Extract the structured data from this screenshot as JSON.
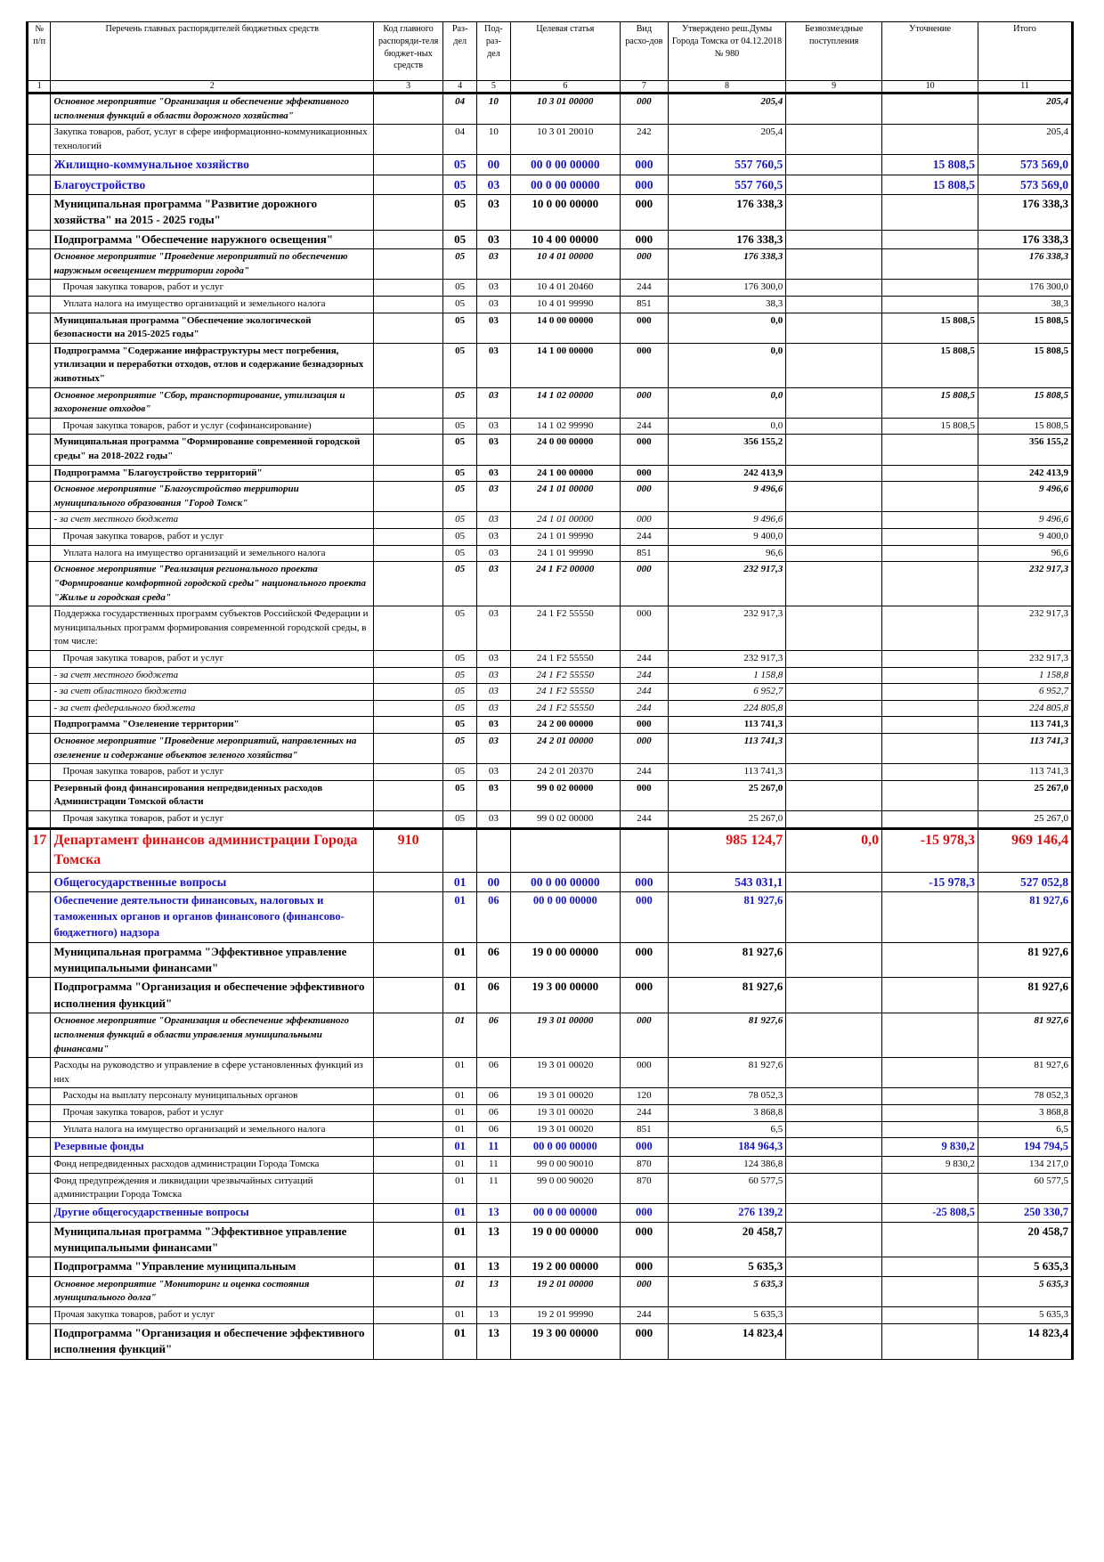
{
  "header": {
    "col1": "№ п/п",
    "col2": "Перечень главных распорядителей бюджетных средств",
    "col3": "Код главного распоряди-теля бюджет-ных средств",
    "col4": "Раз-дел",
    "col5": "Под-раз-дел",
    "col6": "Целевая статья",
    "col7": "Вид расхо-дов",
    "col8": "Утверждено реш.Думы Города Томска от 04.12.2018 № 980",
    "col9": "Безвозмездные поступления",
    "col10": "Уточнение",
    "col11": "Итого"
  },
  "col_numbers": [
    "1",
    "2",
    "3",
    "4",
    "5",
    "6",
    "7",
    "8",
    "9",
    "10",
    "11"
  ],
  "rows": [
    {
      "style": "bi",
      "n": "",
      "name": "Основное мероприятие \"Организация и обеспечение эффективного исполнения функций в области дорожного хозяйства\"",
      "code": "",
      "razd": "04",
      "podr": "10",
      "cs": "10 3 01 00000",
      "vr": "000",
      "approved": "205,4",
      "free": "",
      "adj": "",
      "total": "205,4"
    },
    {
      "style": "n",
      "n": "",
      "name": "Закупка товаров, работ, услуг в сфере информационно-коммуникационных технологий",
      "code": "",
      "razd": "04",
      "podr": "10",
      "cs": "10 3 01 20010",
      "vr": "242",
      "approved": "205,4",
      "free": "",
      "adj": "",
      "total": "205,4"
    },
    {
      "style": "blue",
      "n": "",
      "name": "Жилищно-коммунальное хозяйство",
      "code": "",
      "razd": "05",
      "podr": "00",
      "cs": "00 0 00 00000",
      "vr": "000",
      "approved": "557 760,5",
      "free": "",
      "adj": "15 808,5",
      "total": "573 569,0"
    },
    {
      "style": "blue",
      "n": "",
      "name": "Благоустройство",
      "code": "",
      "razd": "05",
      "podr": "03",
      "cs": "00 0 00 00000",
      "vr": "000",
      "approved": "557 760,5",
      "free": "",
      "adj": "15 808,5",
      "total": "573 569,0"
    },
    {
      "style": "b big",
      "n": "",
      "name": "Муниципальная программа \"Развитие дорожного хозяйства\" на 2015 - 2025 годы\"",
      "code": "",
      "razd": "05",
      "podr": "03",
      "cs": "10 0 00 00000",
      "vr": "000",
      "approved": "176 338,3",
      "free": "",
      "adj": "",
      "total": "176 338,3"
    },
    {
      "style": "b big",
      "n": "",
      "name": "Подпрограмма \"Обеспечение наружного освещения\"",
      "code": "",
      "razd": "05",
      "podr": "03",
      "cs": "10 4 00 00000",
      "vr": "000",
      "approved": "176 338,3",
      "free": "",
      "adj": "",
      "total": "176 338,3"
    },
    {
      "style": "bi",
      "n": "",
      "name": "Основное мероприятие \"Проведение мероприятий по обеспечению наружным освещением территории города\"",
      "code": "",
      "razd": "05",
      "podr": "03",
      "cs": "10 4 01 00000",
      "vr": "000",
      "approved": "176 338,3",
      "free": "",
      "adj": "",
      "total": "176 338,3"
    },
    {
      "style": "n pad",
      "n": "",
      "name": "Прочая закупка товаров, работ и услуг",
      "code": "",
      "razd": "05",
      "podr": "03",
      "cs": "10 4 01 20460",
      "vr": "244",
      "approved": "176 300,0",
      "free": "",
      "adj": "",
      "total": "176 300,0"
    },
    {
      "style": "n pad",
      "n": "",
      "name": "Уплата налога на имущество организаций и земельного налога",
      "code": "",
      "razd": "05",
      "podr": "03",
      "cs": "10 4 01 99990",
      "vr": "851",
      "approved": "38,3",
      "free": "",
      "adj": "",
      "total": "38,3"
    },
    {
      "style": "b",
      "n": "",
      "name": "Муниципальная программа \"Обеспечение экологической безопасности на 2015-2025 годы\"",
      "code": "",
      "razd": "05",
      "podr": "03",
      "cs": "14 0 00 00000",
      "vr": "000",
      "approved": "0,0",
      "free": "",
      "adj": "15 808,5",
      "total": "15 808,5"
    },
    {
      "style": "b",
      "n": "",
      "name": "Подпрограмма \"Содержание инфраструктуры мест погребения, утилизации и переработки отходов, отлов и содержание безнадзорных животных\"",
      "code": "",
      "razd": "05",
      "podr": "03",
      "cs": "14 1 00 00000",
      "vr": "000",
      "approved": "0,0",
      "free": "",
      "adj": "15 808,5",
      "total": "15 808,5"
    },
    {
      "style": "bi",
      "n": "",
      "name": "Основное мероприятие \"Сбор, транспортирование, утилизация и захоронение отходов\"",
      "code": "",
      "razd": "05",
      "podr": "03",
      "cs": "14 1 02 00000",
      "vr": "000",
      "approved": "0,0",
      "free": "",
      "adj": "15 808,5",
      "total": "15 808,5"
    },
    {
      "style": "n pad",
      "n": "",
      "name": "Прочая закупка товаров, работ и услуг (софинансирование)",
      "code": "",
      "razd": "05",
      "podr": "03",
      "cs": "14 1 02 99990",
      "vr": "244",
      "approved": "0,0",
      "free": "",
      "adj": "15 808,5",
      "total": "15 808,5"
    },
    {
      "style": "b",
      "n": "",
      "name": "Муниципальная программа \"Формирование современной городской среды\" на 2018-2022 годы\"",
      "code": "",
      "razd": "05",
      "podr": "03",
      "cs": "24 0 00 00000",
      "vr": "000",
      "approved": "356 155,2",
      "free": "",
      "adj": "",
      "total": "356 155,2"
    },
    {
      "style": "b",
      "n": "",
      "name": "Подпрограмма \"Благоустройство территорий\"",
      "code": "",
      "razd": "05",
      "podr": "03",
      "cs": "24 1 00 00000",
      "vr": "000",
      "approved": "242 413,9",
      "free": "",
      "adj": "",
      "total": "242 413,9"
    },
    {
      "style": "bi",
      "n": "",
      "name": "Основное мероприятие \"Благоустройство территории муниципального образования \"Город Томск\"",
      "code": "",
      "razd": "05",
      "podr": "03",
      "cs": "24 1 01 00000",
      "vr": "000",
      "approved": "9 496,6",
      "free": "",
      "adj": "",
      "total": "9 496,6"
    },
    {
      "style": "i",
      "n": "",
      "name": "- за счет местного бюджета",
      "code": "",
      "razd": "05",
      "podr": "03",
      "cs": "24 1 01 00000",
      "vr": "000",
      "approved": "9 496,6",
      "free": "",
      "adj": "",
      "total": "9 496,6"
    },
    {
      "style": "n pad",
      "n": "",
      "name": "Прочая закупка товаров, работ и услуг",
      "code": "",
      "razd": "05",
      "podr": "03",
      "cs": "24 1 01 99990",
      "vr": "244",
      "approved": "9 400,0",
      "free": "",
      "adj": "",
      "total": "9 400,0"
    },
    {
      "style": "n pad",
      "n": "",
      "name": "Уплата налога на имущество организаций и земельного налога",
      "code": "",
      "razd": "05",
      "podr": "03",
      "cs": "24 1 01 99990",
      "vr": "851",
      "approved": "96,6",
      "free": "",
      "adj": "",
      "total": "96,6"
    },
    {
      "style": "bi",
      "n": "",
      "name": "Основное мероприятие \"Реализация регионального проекта \"Формирование комфортной городской среды\" национального проекта \"Жилье и городская среда\"",
      "code": "",
      "razd": "05",
      "podr": "03",
      "cs": "24 1 F2 00000",
      "vr": "000",
      "approved": "232 917,3",
      "free": "",
      "adj": "",
      "total": "232 917,3"
    },
    {
      "style": "n",
      "n": "",
      "name": "Поддержка государственных программ субъектов Российской Федерации и муниципальных программ формирования современной городской среды, в том числе:",
      "code": "",
      "razd": "05",
      "podr": "03",
      "cs": "24 1 F2 55550",
      "vr": "000",
      "approved": "232 917,3",
      "free": "",
      "adj": "",
      "total": "232 917,3"
    },
    {
      "style": "n pad",
      "n": "",
      "name": "Прочая закупка товаров, работ и услуг",
      "code": "",
      "razd": "05",
      "podr": "03",
      "cs": "24 1 F2 55550",
      "vr": "244",
      "approved": "232 917,3",
      "free": "",
      "adj": "",
      "total": "232 917,3"
    },
    {
      "style": "i",
      "n": "",
      "name": "- за счет местного бюджета",
      "code": "",
      "razd": "05",
      "podr": "03",
      "cs": "24 1 F2 55550",
      "vr": "244",
      "approved": "1 158,8",
      "free": "",
      "adj": "",
      "total": "1 158,8"
    },
    {
      "style": "i",
      "n": "",
      "name": "- за счет областного бюджета",
      "code": "",
      "razd": "05",
      "podr": "03",
      "cs": "24 1 F2 55550",
      "vr": "244",
      "approved": "6 952,7",
      "free": "",
      "adj": "",
      "total": "6 952,7"
    },
    {
      "style": "i",
      "n": "",
      "name": "- за счет федерального бюджета",
      "code": "",
      "razd": "05",
      "podr": "03",
      "cs": "24 1 F2 55550",
      "vr": "244",
      "approved": "224 805,8",
      "free": "",
      "adj": "",
      "total": "224 805,8"
    },
    {
      "style": "b",
      "n": "",
      "name": "Подпрограмма \"Озеленение территории\"",
      "code": "",
      "razd": "05",
      "podr": "03",
      "cs": "24 2 00 00000",
      "vr": "000",
      "approved": "113 741,3",
      "free": "",
      "adj": "",
      "total": "113 741,3"
    },
    {
      "style": "bi",
      "n": "",
      "name": "Основное мероприятие \"Проведение мероприятий, направленных на озеленение и содержание объектов зеленого хозяйства\"",
      "code": "",
      "razd": "05",
      "podr": "03",
      "cs": "24 2 01 00000",
      "vr": "000",
      "approved": "113 741,3",
      "free": "",
      "adj": "",
      "total": "113 741,3"
    },
    {
      "style": "n pad",
      "n": "",
      "name": "Прочая закупка товаров, работ и услуг",
      "code": "",
      "razd": "05",
      "podr": "03",
      "cs": "24 2 01 20370",
      "vr": "244",
      "approved": "113 741,3",
      "free": "",
      "adj": "",
      "total": "113 741,3"
    },
    {
      "style": "b",
      "n": "",
      "name": "Резервный фонд финансирования непредвиденных расходов Администрации Томской области",
      "code": "",
      "razd": "05",
      "podr": "03",
      "cs": "99 0 02 00000",
      "vr": "000",
      "approved": "25 267,0",
      "free": "",
      "adj": "",
      "total": "25 267,0"
    },
    {
      "style": "n pad",
      "n": "",
      "name": "Прочая закупка товаров, работ и услуг",
      "code": "",
      "razd": "05",
      "podr": "03",
      "cs": "99 0 02 00000",
      "vr": "244",
      "approved": "25 267,0",
      "free": "",
      "adj": "",
      "total": "25 267,0"
    },
    {
      "style": "red",
      "n": "17",
      "name": "Департамент финансов администрации Города Томска",
      "code": "910",
      "razd": "",
      "podr": "",
      "cs": "",
      "vr": "",
      "approved": "985 124,7",
      "free": "0,0",
      "adj": "-15 978,3",
      "total": "969 146,4"
    },
    {
      "style": "blue",
      "n": "",
      "name": "Общегосударственные вопросы",
      "code": "",
      "razd": "01",
      "podr": "00",
      "cs": "00 0 00 00000",
      "vr": "000",
      "approved": "543 031,1",
      "free": "",
      "adj": "-15 978,3",
      "total": "527 052,8"
    },
    {
      "style": "blue small",
      "n": "",
      "name": "Обеспечение деятельности финансовых, налоговых и таможенных органов и органов финансового (финансово-бюджетного) надзора",
      "code": "",
      "razd": "01",
      "podr": "06",
      "cs": "00 0 00 00000",
      "vr": "000",
      "approved": "81 927,6",
      "free": "",
      "adj": "",
      "total": "81 927,6"
    },
    {
      "style": "b big",
      "n": "",
      "name": "Муниципальная программа \"Эффективное управление муниципальными финансами\"",
      "code": "",
      "razd": "01",
      "podr": "06",
      "cs": "19 0 00 00000",
      "vr": "000",
      "approved": "81 927,6",
      "free": "",
      "adj": "",
      "total": "81 927,6"
    },
    {
      "style": "b big",
      "n": "",
      "name": "Подпрограмма \"Организация и обеспечение эффективного исполнения функций\"",
      "code": "",
      "razd": "01",
      "podr": "06",
      "cs": "19 3 00 00000",
      "vr": "000",
      "approved": "81 927,6",
      "free": "",
      "adj": "",
      "total": "81 927,6"
    },
    {
      "style": "bi",
      "n": "",
      "name": "Основное мероприятие \"Организация и обеспечение эффективного исполнения функций в области управления муниципальными финансами\"",
      "code": "",
      "razd": "01",
      "podr": "06",
      "cs": "19 3 01 00000",
      "vr": "000",
      "approved": "81 927,6",
      "free": "",
      "adj": "",
      "total": "81 927,6"
    },
    {
      "style": "n",
      "n": "",
      "name": "Расходы на руководство и управление в сфере установленных функций из них",
      "code": "",
      "razd": "01",
      "podr": "06",
      "cs": "19 3 01 00020",
      "vr": "000",
      "approved": "81 927,6",
      "free": "",
      "adj": "",
      "total": "81 927,6"
    },
    {
      "style": "n pad",
      "n": "",
      "name": "Расходы на выплату персоналу муниципальных органов",
      "code": "",
      "razd": "01",
      "podr": "06",
      "cs": "19 3 01 00020",
      "vr": "120",
      "approved": "78 052,3",
      "free": "",
      "adj": "",
      "total": "78 052,3"
    },
    {
      "style": "n pad",
      "n": "",
      "name": "Прочая закупка товаров, работ и услуг",
      "code": "",
      "razd": "01",
      "podr": "06",
      "cs": "19 3 01 00020",
      "vr": "244",
      "approved": "3 868,8",
      "free": "",
      "adj": "",
      "total": "3 868,8"
    },
    {
      "style": "n pad",
      "n": "",
      "name": "Уплата налога на имущество организаций и земельного налога",
      "code": "",
      "razd": "01",
      "podr": "06",
      "cs": "19 3 01 00020",
      "vr": "851",
      "approved": "6,5",
      "free": "",
      "adj": "",
      "total": "6,5"
    },
    {
      "style": "blue small",
      "n": "",
      "name": "Резервные фонды",
      "code": "",
      "razd": "01",
      "podr": "11",
      "cs": "00 0 00 00000",
      "vr": "000",
      "approved": "184 964,3",
      "free": "",
      "adj": "9 830,2",
      "total": "194 794,5"
    },
    {
      "style": "n",
      "n": "",
      "name": "Фонд непредвиденных расходов администрации Города Томска",
      "code": "",
      "razd": "01",
      "podr": "11",
      "cs": "99 0 00 90010",
      "vr": "870",
      "approved": "124 386,8",
      "free": "",
      "adj": "9 830,2",
      "total": "134 217,0"
    },
    {
      "style": "n",
      "n": "",
      "name": "Фонд предупреждения и ликвидации чрезвычайных ситуаций администрации Города Томска",
      "code": "",
      "razd": "01",
      "podr": "11",
      "cs": "99 0 00 90020",
      "vr": "870",
      "approved": "60 577,5",
      "free": "",
      "adj": "",
      "total": "60 577,5"
    },
    {
      "style": "blue small",
      "n": "",
      "name": "Другие общегосударственные вопросы",
      "code": "",
      "razd": "01",
      "podr": "13",
      "cs": "00 0 00 00000",
      "vr": "000",
      "approved": "276 139,2",
      "free": "",
      "adj": "-25 808,5",
      "total": "250 330,7"
    },
    {
      "style": "b big",
      "n": "",
      "name": "Муниципальная программа \"Эффективное управление муниципальными финансами\"",
      "code": "",
      "razd": "01",
      "podr": "13",
      "cs": "19 0 00 00000",
      "vr": "000",
      "approved": "20 458,7",
      "free": "",
      "adj": "",
      "total": "20 458,7"
    },
    {
      "style": "b big",
      "n": "",
      "name": "Подпрограмма \"Управление муниципальным",
      "code": "",
      "razd": "01",
      "podr": "13",
      "cs": "19 2 00 00000",
      "vr": "000",
      "approved": "5 635,3",
      "free": "",
      "adj": "",
      "total": "5 635,3"
    },
    {
      "style": "bi",
      "n": "",
      "name": "Основное мероприятие \"Мониторинг и оценка состояния муниципального долга\"",
      "code": "",
      "razd": "01",
      "podr": "13",
      "cs": "19 2 01 00000",
      "vr": "000",
      "approved": "5 635,3",
      "free": "",
      "adj": "",
      "total": "5 635,3"
    },
    {
      "style": "n",
      "n": "",
      "name": "Прочая закупка товаров, работ и услуг",
      "code": "",
      "razd": "01",
      "podr": "13",
      "cs": "19 2 01 99990",
      "vr": "244",
      "approved": "5 635,3",
      "free": "",
      "adj": "",
      "total": "5 635,3"
    },
    {
      "style": "b big",
      "n": "",
      "name": "Подпрограмма \"Организация и обеспечение эффективного исполнения функций\"",
      "code": "",
      "razd": "01",
      "podr": "13",
      "cs": "19 3 00 00000",
      "vr": "000",
      "approved": "14 823,4",
      "free": "",
      "adj": "",
      "total": "14 823,4"
    }
  ]
}
